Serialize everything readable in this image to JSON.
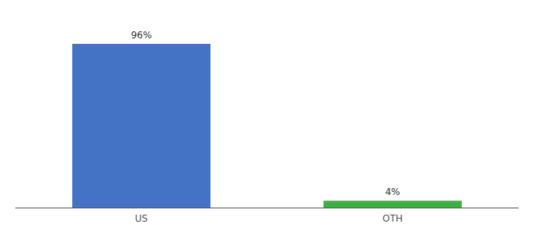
{
  "chart_data": {
    "type": "bar",
    "categories": [
      "US",
      "OTH"
    ],
    "values": [
      96,
      4
    ],
    "value_labels": [
      "96%",
      "4%"
    ],
    "colors": [
      "#4472c4",
      "#3cb043"
    ],
    "data_labels": true,
    "ylim": [
      0,
      108
    ],
    "tick_labels": "x",
    "grid": false
  }
}
